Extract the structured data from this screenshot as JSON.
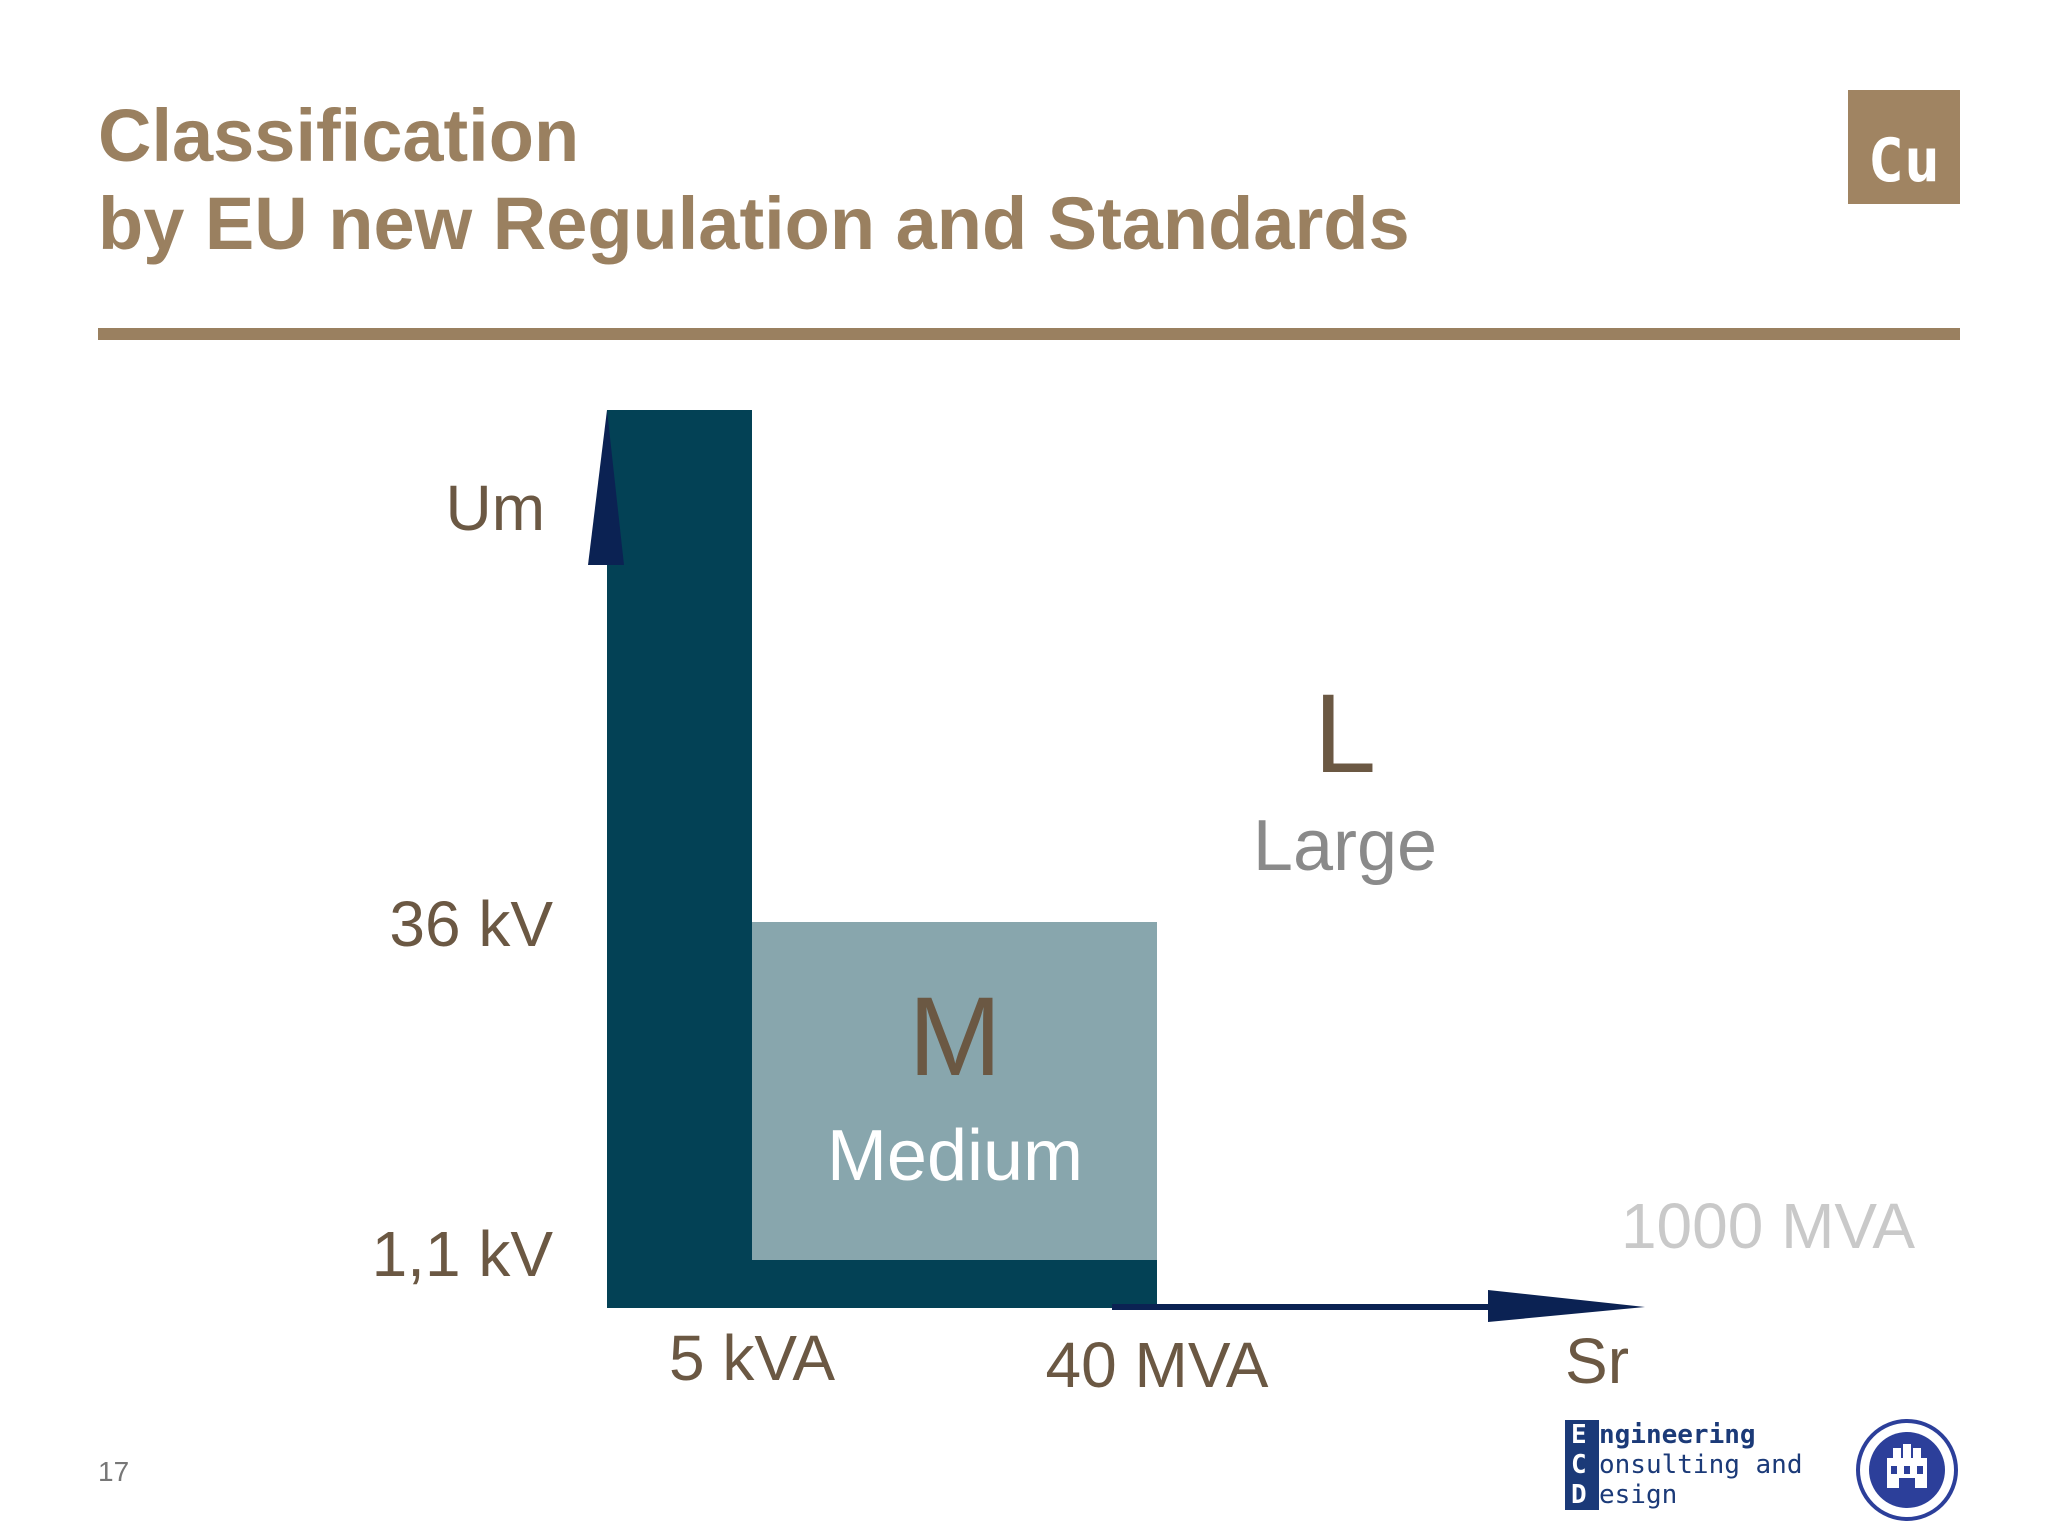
{
  "slide": {
    "title_line1": "Classification",
    "title_line2": "by EU new Regulation and Standards",
    "page_number": "17",
    "badge": "Cu"
  },
  "diagram": {
    "y_axis_label": "Um",
    "x_axis_label": "Sr",
    "y_ticks": [
      "36 kV",
      "1,1 kV"
    ],
    "x_ticks": [
      "5 kVA",
      "40 MVA"
    ],
    "extra_label": "1000 MVA",
    "regions": [
      {
        "letter": "M",
        "name": "Medium"
      },
      {
        "letter": "L",
        "name": "Large"
      }
    ],
    "colors": {
      "dark_band": "#034155",
      "medium_box": "#88a6ad",
      "arrow": "#0b2253",
      "accent": "#9a8060"
    }
  },
  "logos": {
    "ecd_lines": [
      "ngineering",
      "onsulting and",
      "esign"
    ],
    "ecd_initials": [
      "E",
      "C",
      "D"
    ]
  }
}
